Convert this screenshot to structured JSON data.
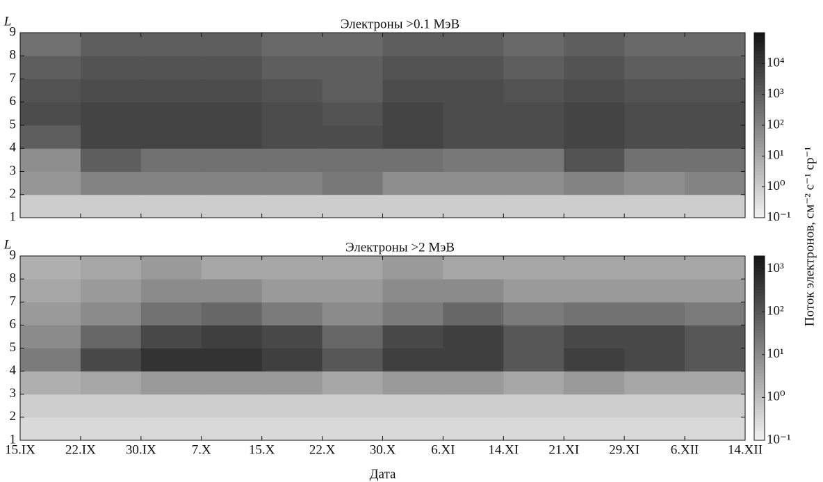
{
  "colorbar_label": "Поток электронов, см⁻² с⁻¹ ср⁻¹",
  "chart_data": [
    {
      "type": "heatmap",
      "title": "Электроны >0.1 МэВ",
      "ylabel": "L",
      "ylim": [
        1,
        9
      ],
      "yticks": [
        1,
        2,
        3,
        4,
        5,
        6,
        7,
        8,
        9
      ],
      "zlim": [
        0.1,
        100000
      ],
      "log_color": true,
      "zticks": [
        {
          "value": 0.1,
          "label": "10⁻¹"
        },
        {
          "value": 1,
          "label": "10⁰"
        },
        {
          "value": 10,
          "label": "10¹"
        },
        {
          "value": 100,
          "label": "10²"
        },
        {
          "value": 1000,
          "label": "10³"
        },
        {
          "value": 10000,
          "label": "10⁴"
        }
      ],
      "z": [
        [
          1,
          1,
          1,
          1,
          1,
          1,
          1,
          1,
          1,
          1,
          1,
          1
        ],
        [
          30,
          100,
          100,
          100,
          100,
          200,
          50,
          50,
          50,
          100,
          50,
          100
        ],
        [
          50,
          1000,
          300,
          300,
          300,
          300,
          300,
          200,
          200,
          2000,
          300,
          300
        ],
        [
          1000,
          5000,
          5000,
          5000,
          3000,
          3000,
          5000,
          3000,
          3000,
          5000,
          3000,
          3000
        ],
        [
          3000,
          5000,
          5000,
          5000,
          3000,
          2000,
          5000,
          3000,
          3000,
          5000,
          3000,
          3000
        ],
        [
          2000,
          3000,
          3000,
          3000,
          2000,
          1000,
          3000,
          3000,
          2000,
          3000,
          2000,
          2000
        ],
        [
          1000,
          2000,
          2000,
          2000,
          1000,
          1000,
          2000,
          2000,
          1000,
          2000,
          1000,
          1000
        ],
        [
          300,
          1000,
          1000,
          1000,
          500,
          500,
          1000,
          1000,
          500,
          1000,
          500,
          500
        ]
      ]
    },
    {
      "type": "heatmap",
      "title": "Электроны >2 МэВ",
      "ylabel": "L",
      "xlabel": "Дата",
      "categories": [
        "15.IX",
        "22.IX",
        "30.IX",
        "7.X",
        "15.X",
        "22.X",
        "30.X",
        "6.XI",
        "14.XI",
        "21.XI",
        "29.XI",
        "6.XII",
        "14.XII"
      ],
      "ylim": [
        1,
        9
      ],
      "yticks": [
        1,
        2,
        3,
        4,
        5,
        6,
        7,
        8,
        9
      ],
      "zlim": [
        0.1,
        2000
      ],
      "log_color": true,
      "zticks": [
        {
          "value": 0.1,
          "label": "10⁻¹"
        },
        {
          "value": 1,
          "label": "10⁰"
        },
        {
          "value": 10,
          "label": "10¹"
        },
        {
          "value": 100,
          "label": "10²"
        },
        {
          "value": 1000,
          "label": "10³"
        }
      ],
      "z": [
        [
          0.3,
          0.3,
          0.3,
          0.3,
          0.3,
          0.3,
          0.3,
          0.3,
          0.3,
          0.3,
          0.3,
          0.3
        ],
        [
          0.5,
          0.5,
          0.5,
          0.5,
          0.5,
          0.5,
          0.5,
          0.5,
          0.5,
          0.5,
          0.5,
          0.5
        ],
        [
          2,
          3,
          5,
          5,
          5,
          3,
          5,
          5,
          3,
          5,
          3,
          3
        ],
        [
          20,
          200,
          500,
          500,
          300,
          100,
          300,
          300,
          100,
          300,
          200,
          100
        ],
        [
          10,
          50,
          200,
          300,
          200,
          50,
          200,
          300,
          100,
          200,
          200,
          100
        ],
        [
          5,
          10,
          30,
          50,
          20,
          10,
          20,
          50,
          20,
          30,
          30,
          20
        ],
        [
          3,
          5,
          10,
          10,
          5,
          5,
          10,
          10,
          5,
          5,
          5,
          5
        ],
        [
          2,
          3,
          5,
          3,
          3,
          3,
          5,
          3,
          3,
          3,
          3,
          3
        ]
      ]
    }
  ]
}
